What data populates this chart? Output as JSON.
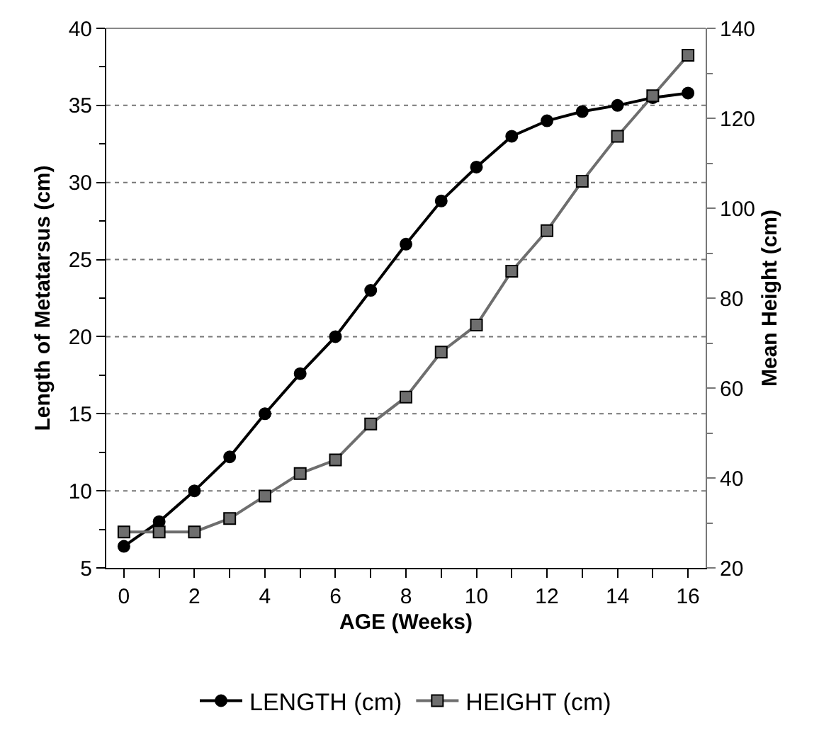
{
  "chart_data": {
    "type": "line",
    "xlabel": "AGE (Weeks)",
    "ylabel": "Length of Metatarsus (cm)",
    "y2label": "Mean Height (cm)",
    "x": [
      0,
      1,
      2,
      3,
      4,
      5,
      6,
      7,
      8,
      9,
      10,
      11,
      12,
      13,
      14,
      15,
      16
    ],
    "series": [
      {
        "name": "LENGTH (cm)",
        "color": "#000000",
        "marker": "circle",
        "values": [
          6.4,
          8,
          10,
          12.2,
          15,
          17.6,
          20,
          23,
          26,
          28.8,
          31,
          33,
          34,
          34.6,
          35,
          35.5,
          35.8
        ]
      },
      {
        "name": "HEIGHT (cm)",
        "color": "#6e6e6e",
        "marker": "square",
        "axis": "y2",
        "values": [
          28,
          28,
          28,
          31,
          36,
          41,
          44,
          52,
          58,
          68,
          74,
          86,
          95,
          106,
          116,
          125,
          134
        ]
      }
    ],
    "xlim": [
      -0.5,
      16.5
    ],
    "xticks": [
      0,
      {
        "value": 1,
        "label": null
      },
      2,
      {
        "value": 3,
        "label": null
      },
      4,
      {
        "value": 5,
        "label": null
      },
      6,
      {
        "value": 7,
        "label": null
      },
      8,
      {
        "value": 9,
        "label": null
      },
      10,
      {
        "value": 11,
        "label": null
      },
      12,
      {
        "value": 13,
        "label": null
      },
      14,
      {
        "value": 15,
        "label": null
      },
      16
    ],
    "ylim": [
      5,
      40
    ],
    "yticks": [
      5,
      {
        "value": 7.5,
        "label": null
      },
      10,
      {
        "value": 12.5,
        "label": null
      },
      15,
      {
        "value": 17.5,
        "label": null
      },
      20,
      {
        "value": 22.5,
        "label": null
      },
      25,
      {
        "value": 27.5,
        "label": null
      },
      30,
      {
        "value": 32.5,
        "label": null
      },
      35,
      {
        "value": 37.5,
        "label": null
      },
      40
    ],
    "y2lim": [
      20,
      140
    ],
    "y2ticks": [
      20,
      {
        "value": 30,
        "label": null
      },
      40,
      {
        "value": 50,
        "label": null
      },
      60,
      {
        "value": 70,
        "label": null
      },
      80,
      {
        "value": 90,
        "label": null
      },
      100,
      {
        "value": 110,
        "label": null
      },
      120,
      {
        "value": 130,
        "label": null
      },
      140
    ],
    "grid": "y",
    "legend": "bottom",
    "line_style": "solid"
  }
}
